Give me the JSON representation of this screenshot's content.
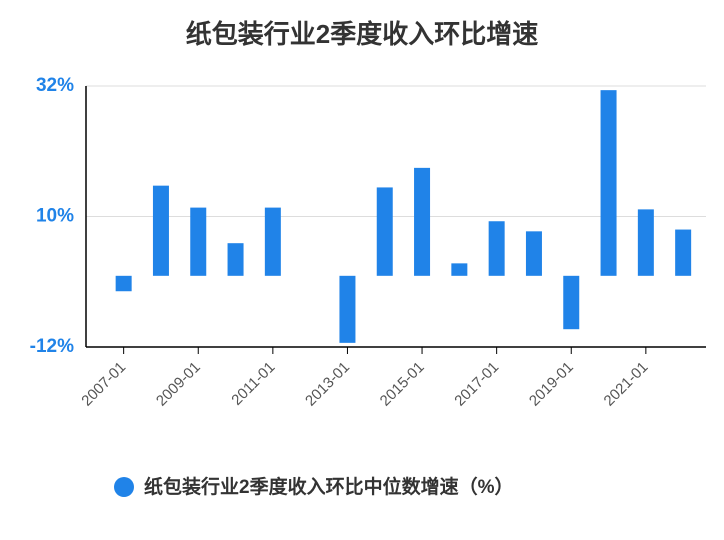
{
  "chart_data": {
    "type": "bar",
    "title": "纸包装行业2季度收入环比增速",
    "categories": [
      "2007-01",
      null,
      "2009-01",
      null,
      "2011-01",
      null,
      "2013-01",
      null,
      "2015-01",
      null,
      "2017-01",
      null,
      "2019-01",
      null,
      "2021-01",
      null
    ],
    "series": [
      {
        "name": "纸包装行业2季度收入环比中位数增速（%）",
        "color": "#2083e8",
        "values": [
          -2.6,
          15.2,
          11.5,
          5.5,
          11.5,
          null,
          -11.3,
          14.9,
          18.2,
          2.1,
          9.2,
          7.5,
          -9.0,
          31.3,
          11.2,
          7.8
        ]
      }
    ],
    "ylim": [
      -12,
      32
    ],
    "yticks": [
      {
        "value": -12,
        "label": "-12%"
      },
      {
        "value": 10,
        "label": "10%"
      },
      {
        "value": 32,
        "label": "32%"
      }
    ],
    "grid": true
  }
}
